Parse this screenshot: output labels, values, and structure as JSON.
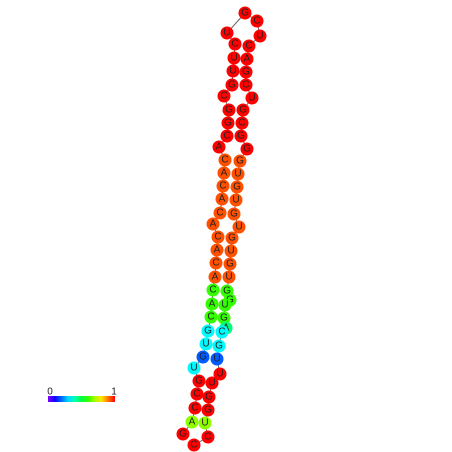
{
  "nodes": [
    {
      "label": "G",
      "value": 1
    },
    {
      "label": "A",
      "value": 0.68
    },
    {
      "label": "C",
      "value": 1
    },
    {
      "label": "C",
      "value": 1
    },
    {
      "label": "G",
      "value": 1
    },
    {
      "label": "U",
      "value": 0.33
    },
    {
      "label": "G",
      "value": 0.19
    },
    {
      "label": "U",
      "value": 0.33
    },
    {
      "label": "G",
      "value": 0.33
    },
    {
      "label": "C",
      "value": 0.6
    },
    {
      "label": "A",
      "value": 0.6
    },
    {
      "label": "C",
      "value": 0.6
    },
    {
      "label": "A",
      "value": 0.93
    },
    {
      "label": "C",
      "value": 0.93
    },
    {
      "label": "A",
      "value": 0.93
    },
    {
      "label": "C",
      "value": 0.93
    },
    {
      "label": "A",
      "value": 0.93
    },
    {
      "label": "C",
      "value": 0.93
    },
    {
      "label": "A",
      "value": 0.93
    },
    {
      "label": "C",
      "value": 0.93
    },
    {
      "label": "A",
      "value": 0.93
    },
    {
      "label": "C",
      "value": 0.93
    },
    {
      "label": "A",
      "value": 1
    },
    {
      "label": "C",
      "value": 1
    },
    {
      "label": "G",
      "value": 1
    },
    {
      "label": "G",
      "value": 1
    },
    {
      "label": "C",
      "value": 1
    },
    {
      "label": "G",
      "value": 1
    },
    {
      "label": "U",
      "value": 1
    },
    {
      "label": "U",
      "value": 1
    },
    {
      "label": "C",
      "value": 1
    },
    {
      "label": "U",
      "value": 1
    },
    {
      "label": "G",
      "value": 1
    },
    {
      "label": "C",
      "value": 1
    },
    {
      "label": "U",
      "value": 1
    },
    {
      "label": "C",
      "value": 1
    },
    {
      "label": "A",
      "value": 1
    },
    {
      "label": "G",
      "value": 1
    },
    {
      "label": "C",
      "value": 1
    },
    {
      "label": "U",
      "value": 1
    },
    {
      "label": "G",
      "value": 1
    },
    {
      "label": "C",
      "value": 1
    },
    {
      "label": "G",
      "value": 1
    },
    {
      "label": "G",
      "value": 1
    },
    {
      "label": "G",
      "value": 0.93
    },
    {
      "label": "U",
      "value": 0.93
    },
    {
      "label": "G",
      "value": 0.93
    },
    {
      "label": "U",
      "value": 0.93
    },
    {
      "label": "G",
      "value": 0.93
    },
    {
      "label": "U",
      "value": 0.93
    },
    {
      "label": "G",
      "value": 0.93
    },
    {
      "label": "U",
      "value": 0.93
    },
    {
      "label": "G",
      "value": 0.93
    },
    {
      "label": "U",
      "value": 0.93
    },
    {
      "label": "G",
      "value": 0.6
    },
    {
      "label": "G",
      "value": 0.6
    },
    {
      "label": "U",
      "value": 0.6
    },
    {
      "label": "G",
      "value": 0.6
    },
    {
      "label": "A",
      "value": 0.45
    },
    {
      "label": "C",
      "value": 0.33
    },
    {
      "label": "G",
      "value": 0.33
    },
    {
      "label": "U",
      "value": 0.19
    },
    {
      "label": "U",
      "value": 1
    },
    {
      "label": "U",
      "value": 1
    },
    {
      "label": "G",
      "value": 1
    },
    {
      "label": "G",
      "value": 1
    },
    {
      "label": "U",
      "value": 0.68
    },
    {
      "label": "C",
      "value": 1
    },
    {
      "label": "C",
      "value": 1
    }
  ],
  "colorbar": {
    "range": [
      0,
      1
    ]
  }
}
